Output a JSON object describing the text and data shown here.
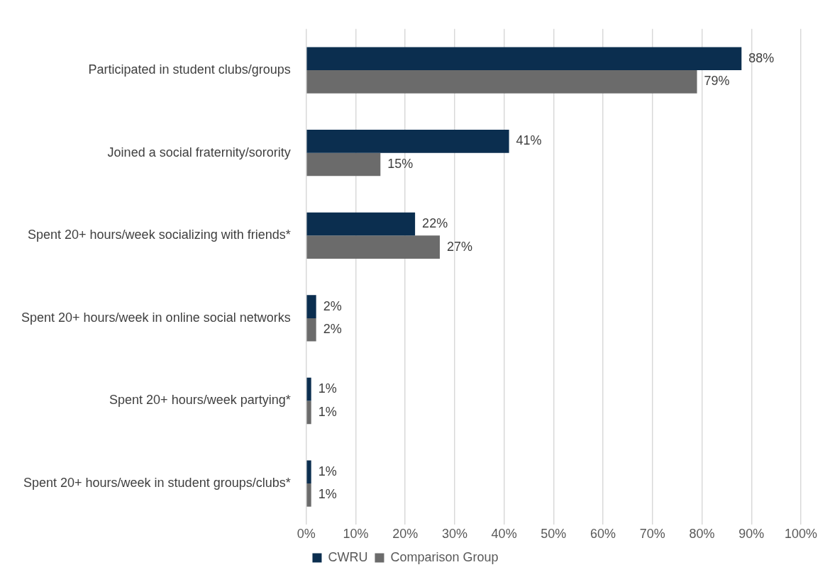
{
  "chart_data": {
    "type": "bar",
    "orientation": "horizontal",
    "categories": [
      "Participated in student clubs/groups",
      "Joined a social fraternity/sorority",
      "Spent 20+ hours/week socializing with friends*",
      "Spent 20+ hours/week in online social networks",
      "Spent 20+ hours/week partying*",
      "Spent 20+ hours/week in student groups/clubs*"
    ],
    "series": [
      {
        "name": "CWRU",
        "color": "#0b2e4f",
        "values": [
          88,
          41,
          22,
          2,
          1,
          1
        ],
        "value_labels": [
          "88%",
          "41%",
          "22%",
          "2%",
          "1%",
          "1%"
        ]
      },
      {
        "name": "Comparison Group",
        "color": "#6b6b6b",
        "values": [
          79,
          15,
          27,
          2,
          1,
          1
        ],
        "value_labels": [
          "79%",
          "15%",
          "27%",
          "2%",
          "1%",
          "1%"
        ]
      }
    ],
    "xlim": [
      0,
      100
    ],
    "xticks": [
      {
        "value": 0,
        "label": "0%"
      },
      {
        "value": 10,
        "label": "10%"
      },
      {
        "value": 20,
        "label": "20%"
      },
      {
        "value": 30,
        "label": "30%"
      },
      {
        "value": 40,
        "label": "40%"
      },
      {
        "value": 50,
        "label": "50%"
      },
      {
        "value": 60,
        "label": "60%"
      },
      {
        "value": 70,
        "label": "70%"
      },
      {
        "value": 80,
        "label": "80%"
      },
      {
        "value": 90,
        "label": "90%"
      },
      {
        "value": 100,
        "label": "100%"
      }
    ],
    "grid": "x",
    "legend": "bottom"
  }
}
